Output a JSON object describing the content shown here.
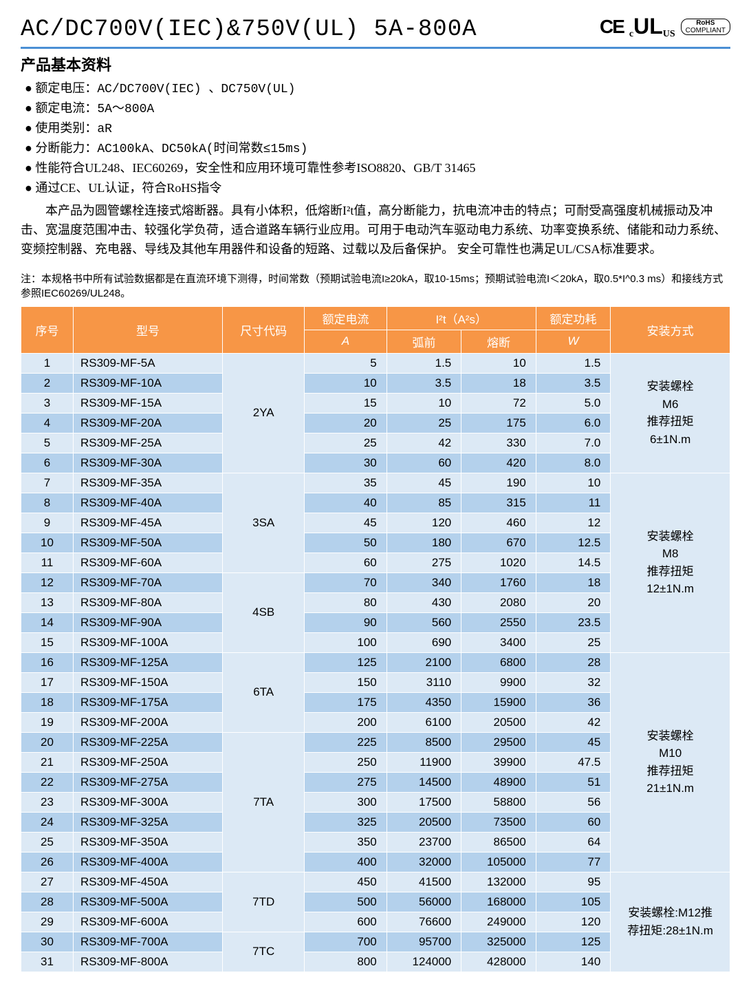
{
  "header": {
    "title": "AC/DC700V(IEC)&750V(UL) 5A-800A",
    "logos": {
      "ce": "CE",
      "cul": "c",
      "ul": "UL",
      "us": "US",
      "rohs_top": "RoHS",
      "rohs_bot": "COMPLIANT"
    }
  },
  "section_heading": "产品基本资料",
  "bullets": [
    {
      "label": "额定电压：",
      "value": "AC/DC700V(IEC) 、DC750V(UL)"
    },
    {
      "label": "额定电流：",
      "value": "5A～800A"
    },
    {
      "label": "使用类别：",
      "value": "aR"
    },
    {
      "label": "分断能力：",
      "value": "AC100kA、DC50kA(时间常数≤15ms)"
    },
    {
      "label": "性能符合UL248、IEC60269，安全性和应用环境可靠性参考ISO8820、GB/T 31465",
      "value": ""
    },
    {
      "label": "通过CE、UL认证，符合RoHS指令",
      "value": ""
    }
  ],
  "description": "本产品为圆管螺栓连接式熔断器。具有小体积，低熔断I²t值，高分断能力，抗电流冲击的特点；可耐受高强度机械振动及冲击、宽温度范围冲击、较强化学负荷，适合道路车辆行业应用。可用于电动汽车驱动电力系统、功率变换系统、储能和动力系统、变频控制器、充电器、导线及其他车用器件和设备的短路、过载以及后备保护。 安全可靠性也满足UL/CSA标准要求。",
  "note": "注：本规格书中所有试验数据都是在直流环境下测得，时间常数（预期试验电流I≥20kA，取10-15ms；预期试验电流I＜20kA，取0.5*I^0.3 ms）和接线方式参照IEC60269/UL248。",
  "columns": {
    "seq": "序号",
    "model": "型号",
    "size": "尺寸代码",
    "current_top": "额定电流",
    "current_unit": "A",
    "i2t_top": "I²t（A²s）",
    "i2t_pre": "弧前",
    "i2t_melt": "熔断",
    "watt_top": "额定功耗",
    "watt_unit": "W",
    "install": "安装方式"
  },
  "size_groups": [
    {
      "code": "2YA",
      "count": 6
    },
    {
      "code": "3SA",
      "count": 5
    },
    {
      "code": "4SB",
      "count": 4
    },
    {
      "code": "6TA",
      "count": 4
    },
    {
      "code": "7TA",
      "count": 7
    },
    {
      "code": "7TD",
      "count": 3
    },
    {
      "code": "7TC",
      "count": 2
    }
  ],
  "install_groups": [
    {
      "lines": [
        "安装螺栓",
        "M6",
        "推荐扭矩",
        "6±1N.m"
      ],
      "count": 6
    },
    {
      "lines": [
        "安装螺栓",
        "M8",
        "推荐扭矩",
        "12±1N.m"
      ],
      "count": 9
    },
    {
      "lines": [
        "安装螺栓",
        "M10",
        "推荐扭矩",
        "21±1N.m"
      ],
      "count": 11
    },
    {
      "lines": [
        "安装螺栓:M12推",
        "荐扭矩:28±1N.m"
      ],
      "count": 5
    }
  ],
  "rows": [
    {
      "seq": 1,
      "model": "RS309-MF-5A",
      "amp": "5",
      "pre": "1.5",
      "melt": "10",
      "watt": "1.5"
    },
    {
      "seq": 2,
      "model": "RS309-MF-10A",
      "amp": "10",
      "pre": "3.5",
      "melt": "18",
      "watt": "3.5"
    },
    {
      "seq": 3,
      "model": "RS309-MF-15A",
      "amp": "15",
      "pre": "10",
      "melt": "72",
      "watt": "5.0"
    },
    {
      "seq": 4,
      "model": "RS309-MF-20A",
      "amp": "20",
      "pre": "25",
      "melt": "175",
      "watt": "6.0"
    },
    {
      "seq": 5,
      "model": "RS309-MF-25A",
      "amp": "25",
      "pre": "42",
      "melt": "330",
      "watt": "7.0"
    },
    {
      "seq": 6,
      "model": "RS309-MF-30A",
      "amp": "30",
      "pre": "60",
      "melt": "420",
      "watt": "8.0"
    },
    {
      "seq": 7,
      "model": "RS309-MF-35A",
      "amp": "35",
      "pre": "45",
      "melt": "190",
      "watt": "10"
    },
    {
      "seq": 8,
      "model": "RS309-MF-40A",
      "amp": "40",
      "pre": "85",
      "melt": "315",
      "watt": "11"
    },
    {
      "seq": 9,
      "model": "RS309-MF-45A",
      "amp": "45",
      "pre": "120",
      "melt": "460",
      "watt": "12"
    },
    {
      "seq": 10,
      "model": "RS309-MF-50A",
      "amp": "50",
      "pre": "180",
      "melt": "670",
      "watt": "12.5"
    },
    {
      "seq": 11,
      "model": "RS309-MF-60A",
      "amp": "60",
      "pre": "275",
      "melt": "1020",
      "watt": "14.5"
    },
    {
      "seq": 12,
      "model": "RS309-MF-70A",
      "amp": "70",
      "pre": "340",
      "melt": "1760",
      "watt": "18"
    },
    {
      "seq": 13,
      "model": "RS309-MF-80A",
      "amp": "80",
      "pre": "430",
      "melt": "2080",
      "watt": "20"
    },
    {
      "seq": 14,
      "model": "RS309-MF-90A",
      "amp": "90",
      "pre": "560",
      "melt": "2550",
      "watt": "23.5"
    },
    {
      "seq": 15,
      "model": "RS309-MF-100A",
      "amp": "100",
      "pre": "690",
      "melt": "3400",
      "watt": "25"
    },
    {
      "seq": 16,
      "model": "RS309-MF-125A",
      "amp": "125",
      "pre": "2100",
      "melt": "6800",
      "watt": "28"
    },
    {
      "seq": 17,
      "model": "RS309-MF-150A",
      "amp": "150",
      "pre": "3110",
      "melt": "9900",
      "watt": "32"
    },
    {
      "seq": 18,
      "model": "RS309-MF-175A",
      "amp": "175",
      "pre": "4350",
      "melt": "15900",
      "watt": "36"
    },
    {
      "seq": 19,
      "model": "RS309-MF-200A",
      "amp": "200",
      "pre": "6100",
      "melt": "20500",
      "watt": "42"
    },
    {
      "seq": 20,
      "model": "RS309-MF-225A",
      "amp": "225",
      "pre": "8500",
      "melt": "29500",
      "watt": "45"
    },
    {
      "seq": 21,
      "model": "RS309-MF-250A",
      "amp": "250",
      "pre": "11900",
      "melt": "39900",
      "watt": "47.5"
    },
    {
      "seq": 22,
      "model": "RS309-MF-275A",
      "amp": "275",
      "pre": "14500",
      "melt": "48900",
      "watt": "51"
    },
    {
      "seq": 23,
      "model": "RS309-MF-300A",
      "amp": "300",
      "pre": "17500",
      "melt": "58800",
      "watt": "56"
    },
    {
      "seq": 24,
      "model": "RS309-MF-325A",
      "amp": "325",
      "pre": "20500",
      "melt": "73500",
      "watt": "60"
    },
    {
      "seq": 25,
      "model": "RS309-MF-350A",
      "amp": "350",
      "pre": "23700",
      "melt": "86500",
      "watt": "64"
    },
    {
      "seq": 26,
      "model": "RS309-MF-400A",
      "amp": "400",
      "pre": "32000",
      "melt": "105000",
      "watt": "77"
    },
    {
      "seq": 27,
      "model": "RS309-MF-450A",
      "amp": "450",
      "pre": "41500",
      "melt": "132000",
      "watt": "95"
    },
    {
      "seq": 28,
      "model": "RS309-MF-500A",
      "amp": "500",
      "pre": "56000",
      "melt": "168000",
      "watt": "105"
    },
    {
      "seq": 29,
      "model": "RS309-MF-600A",
      "amp": "600",
      "pre": "76600",
      "melt": "249000",
      "watt": "120"
    },
    {
      "seq": 30,
      "model": "RS309-MF-700A",
      "amp": "700",
      "pre": "95700",
      "melt": "325000",
      "watt": "125"
    },
    {
      "seq": 31,
      "model": "RS309-MF-800A",
      "amp": "800",
      "pre": "124000",
      "melt": "428000",
      "watt": "140"
    }
  ],
  "colors": {
    "header_bg": "#f79646",
    "row_even_bg": "#b4d1ec",
    "row_odd_bg": "#dce9f5",
    "border": "#ffffff",
    "rule": "#4a8fd4"
  }
}
